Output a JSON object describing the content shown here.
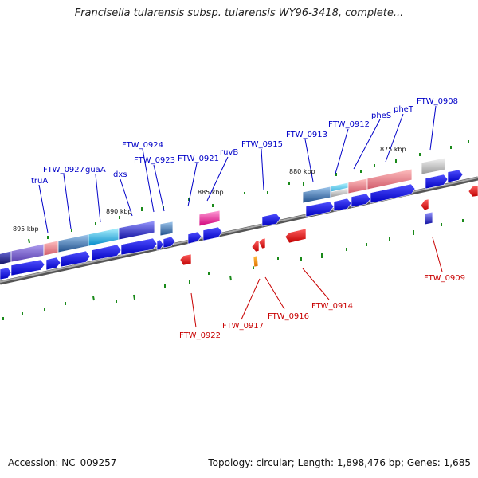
{
  "title": "Francisella tularensis subsp. tularensis WY96-3418, complete...",
  "footer": {
    "accession": "Accession: NC_009257",
    "stats": "Topology: circular; Length: 1,898,476 bp; Genes: 1,685"
  },
  "scale_labels": [
    "895 kbp",
    "890 kbp",
    "885 kbp",
    "880 kbp",
    "875 kbp"
  ],
  "genes_top": [
    "truA",
    "FTW_0927",
    "guaA",
    "dxs",
    "FTW_0924",
    "FTW_0923",
    "FTW_0921",
    "ruvB",
    "FTW_0915",
    "FTW_0913",
    "FTW_0912",
    "pheS",
    "pheT",
    "FTW_0908"
  ],
  "genes_bottom": [
    "FTW_0922",
    "FTW_0917",
    "FTW_0916",
    "FTW_0914",
    "FTW_0909"
  ],
  "colors": {
    "forward_cds": "#0000ee",
    "reverse_cds": "#ee0000",
    "top_label": "#0000c8",
    "bottom_label": "#c80000",
    "tick": "#1a8a1a",
    "backbone": "#777777"
  }
}
